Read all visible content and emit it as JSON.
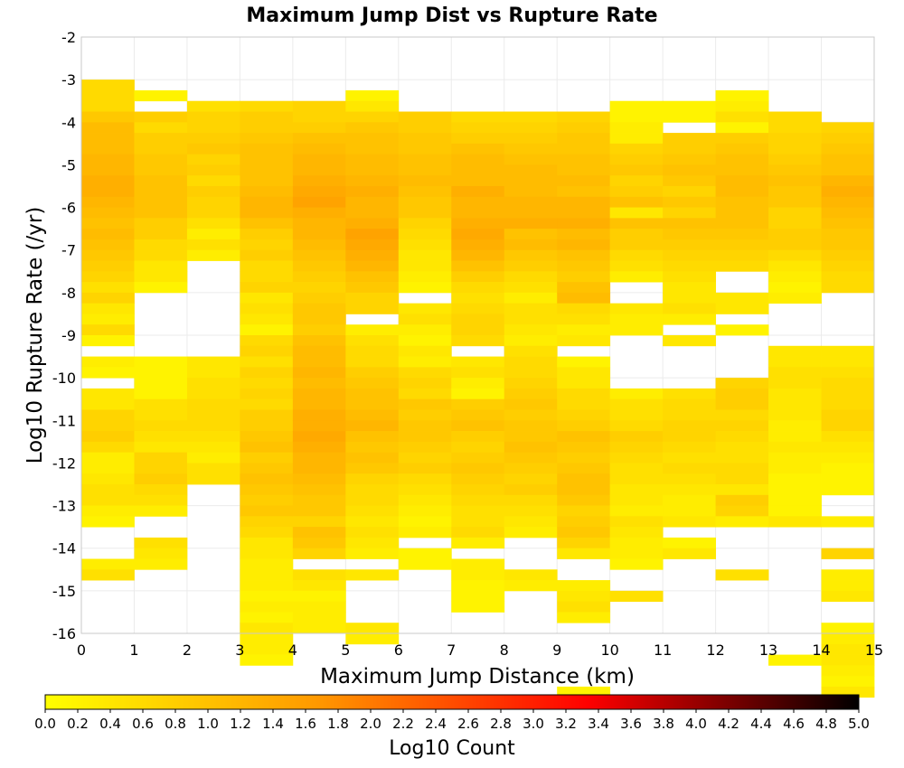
{
  "chart_data": {
    "type": "heatmap",
    "title": "Maximum Jump Dist vs Rupture Rate",
    "xlabel": "Maximum Jump Distance (km)",
    "ylabel": "Log10 Rupture Rate (/yr)",
    "colorbar_label": "Log10 Count",
    "xlim": [
      0,
      15
    ],
    "ylim": [
      -16,
      -2
    ],
    "x_ticks": [
      "0",
      "1",
      "2",
      "3",
      "4",
      "5",
      "6",
      "7",
      "8",
      "9",
      "10",
      "11",
      "12",
      "13",
      "14",
      "15"
    ],
    "y_ticks": [
      "-16",
      "-15",
      "-14",
      "-13",
      "-12",
      "-11",
      "-10",
      "-9",
      "-8",
      "-7",
      "-6",
      "-5",
      "-4",
      "-3",
      "-2"
    ],
    "colorbar_ticks": [
      "0.0",
      "0.2",
      "0.4",
      "0.6",
      "0.8",
      "1.0",
      "1.2",
      "1.4",
      "1.6",
      "1.8",
      "2.0",
      "2.2",
      "2.4",
      "2.6",
      "2.8",
      "3.0",
      "3.2",
      "3.4",
      "3.6",
      "3.8",
      "4.0",
      "4.2",
      "4.4",
      "4.6",
      "4.8",
      "5.0"
    ],
    "colorbar_range": [
      0,
      5
    ],
    "colormap": [
      "#ffff00",
      "#ff9900",
      "#ff0000",
      "#000000"
    ],
    "grid": true,
    "cell_height": 0.25,
    "x_bin_starts": [
      0,
      1,
      2,
      3,
      4,
      5,
      6,
      7,
      8,
      9,
      10,
      11,
      12,
      13,
      14
    ],
    "columns": [
      {
        "y_top": -3.0,
        "values": [
          0.6,
          0.6,
          0.6,
          0.9,
          1.1,
          1.1,
          1.1,
          1.2,
          1.2,
          1.3,
          1.3,
          1.2,
          1.1,
          1.0,
          1.1,
          1.0,
          0.9,
          0.8,
          0.7,
          0.5,
          0.7,
          0.4,
          0.3,
          0.6,
          0.2,
          null,
          0.3,
          0.2,
          null,
          0.4,
          0.4,
          0.7,
          0.7,
          0.8,
          0.6,
          0.3,
          0.3,
          0.4,
          0.5,
          0.5,
          0.3,
          0.2,
          null,
          null,
          null,
          0.3,
          0.5,
          null,
          null,
          null,
          null,
          null,
          null,
          null,
          null,
          null,
          null,
          null,
          null,
          null,
          null,
          null,
          null,
          null
        ]
      },
      {
        "y_top": -3.25,
        "values": [
          0.2,
          null,
          0.8,
          0.6,
          0.8,
          0.8,
          0.9,
          0.9,
          1.0,
          1.0,
          1.0,
          1.0,
          0.8,
          0.8,
          0.6,
          0.6,
          0.4,
          0.4,
          0.2,
          null,
          null,
          null,
          null,
          null,
          null,
          0.2,
          0.2,
          0.2,
          0.2,
          0.5,
          0.5,
          0.6,
          0.5,
          0.4,
          0.7,
          0.7,
          0.8,
          0.6,
          0.5,
          0.3,
          null,
          null,
          0.5,
          0.4,
          0.3,
          null,
          null,
          null,
          null,
          null,
          null,
          null,
          null,
          null,
          null,
          null,
          null,
          null,
          null,
          null,
          null,
          null,
          null,
          null
        ]
      },
      {
        "y_top": -3.5,
        "values": [
          0.5,
          0.7,
          0.7,
          0.8,
          0.9,
          0.7,
          0.8,
          0.6,
          0.8,
          0.7,
          0.7,
          0.5,
          0.3,
          0.5,
          0.3,
          null,
          null,
          null,
          null,
          null,
          null,
          null,
          null,
          null,
          0.4,
          0.4,
          0.5,
          0.5,
          0.6,
          0.6,
          0.6,
          0.5,
          0.4,
          0.3,
          0.5,
          0.5,
          null,
          null,
          null,
          null,
          null,
          null,
          null,
          null,
          null,
          null,
          null,
          null,
          null,
          null,
          null,
          null,
          null,
          null,
          null,
          null,
          null,
          null,
          null,
          null,
          null,
          null,
          null,
          null
        ]
      },
      {
        "y_top": -3.5,
        "values": [
          0.6,
          0.8,
          0.8,
          0.9,
          1.0,
          1.0,
          1.0,
          1.0,
          1.1,
          1.2,
          1.2,
          1.0,
          0.8,
          0.7,
          0.8,
          0.6,
          0.6,
          0.7,
          0.4,
          0.5,
          0.4,
          0.2,
          0.6,
          0.7,
          0.5,
          0.7,
          0.6,
          0.7,
          0.6,
          0.8,
          0.8,
          0.9,
          1.0,
          0.8,
          0.9,
          1.0,
          0.9,
          0.8,
          0.9,
          0.7,
          0.6,
          0.4,
          0.4,
          0.3,
          0.3,
          0.3,
          0.2,
          0.3,
          0.2,
          0.4,
          0.3,
          0.3,
          0.2,
          null,
          null,
          null,
          null,
          null,
          null,
          null,
          null,
          null,
          null,
          null
        ]
      },
      {
        "y_top": -3.5,
        "values": [
          0.7,
          0.7,
          0.8,
          1.0,
          1.1,
          1.2,
          1.2,
          1.3,
          1.4,
          1.5,
          1.3,
          1.2,
          1.2,
          1.1,
          1.0,
          0.9,
          0.8,
          0.7,
          0.8,
          0.9,
          0.9,
          0.8,
          1.0,
          1.1,
          1.1,
          1.2,
          1.1,
          1.2,
          1.2,
          1.3,
          1.3,
          1.4,
          1.3,
          1.2,
          1.2,
          1.1,
          1.0,
          0.9,
          0.9,
          0.7,
          1.0,
          0.9,
          0.7,
          null,
          0.5,
          0.4,
          0.2,
          0.3,
          0.3,
          0.3,
          null,
          null,
          null,
          null,
          null,
          null,
          null,
          null,
          null,
          null,
          null,
          null,
          null,
          null
        ]
      },
      {
        "y_top": -3.25,
        "values": [
          0.2,
          0.4,
          0.7,
          0.9,
          1.0,
          1.0,
          1.1,
          1.1,
          1.2,
          1.3,
          1.2,
          1.2,
          1.3,
          1.5,
          1.4,
          1.3,
          1.2,
          1.0,
          0.9,
          0.7,
          0.7,
          null,
          0.3,
          0.5,
          0.6,
          0.6,
          0.8,
          0.9,
          1.0,
          1.0,
          1.1,
          1.2,
          1.0,
          0.9,
          1.0,
          0.9,
          0.7,
          0.6,
          0.6,
          0.5,
          0.4,
          0.5,
          0.4,
          0.3,
          null,
          0.4,
          null,
          null,
          null,
          null,
          0.4,
          0.3,
          null,
          null,
          null,
          null,
          null,
          null,
          null,
          null,
          null,
          null,
          null,
          null
        ]
      },
      {
        "y_top": -3.75,
        "values": [
          0.8,
          0.8,
          0.9,
          0.9,
          1.0,
          1.0,
          1.1,
          1.0,
          0.9,
          0.9,
          0.7,
          0.6,
          0.5,
          0.4,
          0.4,
          0.3,
          0.2,
          null,
          0.4,
          0.5,
          0.3,
          0.2,
          0.4,
          0.3,
          0.6,
          0.7,
          0.6,
          0.9,
          0.8,
          0.9,
          0.9,
          0.8,
          0.7,
          0.8,
          0.6,
          0.5,
          0.4,
          0.3,
          0.2,
          0.3,
          null,
          0.2,
          0.2,
          null,
          null,
          null,
          null,
          null,
          null,
          null,
          null,
          null,
          null,
          null,
          null,
          null,
          null,
          null,
          null,
          null,
          null,
          null,
          null,
          null
        ]
      },
      {
        "y_top": -3.75,
        "values": [
          0.6,
          0.7,
          0.8,
          1.0,
          1.1,
          1.1,
          1.1,
          1.3,
          1.2,
          1.2,
          1.3,
          1.4,
          1.3,
          1.2,
          1.0,
          0.8,
          0.6,
          0.5,
          0.6,
          0.7,
          0.7,
          0.6,
          null,
          0.4,
          0.5,
          0.3,
          0.2,
          0.8,
          0.9,
          1.0,
          0.8,
          0.7,
          0.8,
          0.9,
          0.8,
          0.7,
          0.6,
          0.5,
          0.5,
          0.6,
          0.3,
          null,
          0.3,
          0.3,
          0.2,
          0.2,
          0.2,
          null,
          null,
          null,
          null,
          null,
          null,
          null,
          null,
          null,
          null,
          null,
          null,
          null,
          null,
          null,
          null,
          null
        ]
      },
      {
        "y_top": -3.75,
        "values": [
          0.6,
          0.7,
          0.8,
          0.9,
          1.0,
          1.1,
          1.1,
          1.1,
          1.2,
          1.2,
          1.3,
          1.0,
          1.1,
          0.9,
          0.8,
          0.6,
          0.5,
          0.3,
          0.5,
          0.5,
          0.4,
          0.3,
          0.5,
          0.6,
          0.6,
          0.7,
          0.8,
          0.9,
          0.8,
          0.9,
          0.9,
          1.0,
          0.9,
          0.8,
          0.7,
          0.8,
          0.6,
          0.5,
          0.4,
          0.3,
          null,
          null,
          null,
          0.4,
          0.3,
          null,
          null,
          null,
          null,
          null,
          null,
          null,
          null,
          null,
          null,
          null,
          null,
          null,
          null,
          null,
          null,
          null,
          null,
          null
        ]
      },
      {
        "y_top": -3.75,
        "values": [
          0.7,
          0.8,
          0.9,
          0.9,
          1.0,
          1.0,
          1.1,
          1.0,
          1.2,
          1.2,
          1.3,
          1.1,
          1.2,
          1.0,
          0.9,
          0.8,
          1.0,
          1.1,
          0.6,
          0.5,
          0.3,
          0.4,
          null,
          0.2,
          0.4,
          0.4,
          0.6,
          0.6,
          0.7,
          0.8,
          1.0,
          0.9,
          0.8,
          0.9,
          1.0,
          1.0,
          0.9,
          0.7,
          0.8,
          0.9,
          0.7,
          0.4,
          null,
          null,
          0.3,
          0.4,
          0.5,
          0.3,
          null,
          null,
          null,
          null,
          null,
          null,
          0.2,
          null,
          null,
          null,
          null,
          null,
          null,
          null,
          null,
          null
        ]
      },
      {
        "y_top": -3.5,
        "values": [
          0.2,
          0.2,
          0.3,
          0.3,
          0.7,
          0.8,
          0.9,
          0.7,
          0.8,
          1.0,
          0.4,
          1.0,
          0.8,
          0.8,
          0.6,
          0.5,
          0.3,
          null,
          null,
          0.4,
          0.3,
          0.3,
          null,
          null,
          null,
          null,
          null,
          0.3,
          0.5,
          0.5,
          0.6,
          0.8,
          0.7,
          0.6,
          0.5,
          0.5,
          0.4,
          0.4,
          0.3,
          0.5,
          0.4,
          0.3,
          0.3,
          0.2,
          null,
          null,
          0.5,
          null,
          null,
          null,
          null,
          null,
          null,
          null,
          null,
          null,
          null,
          null,
          null,
          null,
          null,
          null,
          null,
          null
        ]
      },
      {
        "y_top": -3.5,
        "values": [
          0.2,
          0.2,
          null,
          0.8,
          0.8,
          0.9,
          1.0,
          0.9,
          0.7,
          0.9,
          0.7,
          1.0,
          0.9,
          0.8,
          0.7,
          0.6,
          0.5,
          0.4,
          0.4,
          0.5,
          0.3,
          null,
          0.4,
          null,
          null,
          null,
          null,
          0.5,
          0.6,
          0.6,
          0.7,
          0.7,
          0.6,
          0.5,
          0.6,
          0.5,
          0.4,
          0.3,
          0.3,
          0.4,
          null,
          0.2,
          0.4,
          null,
          null,
          null,
          null,
          null,
          null,
          null,
          null,
          null,
          null,
          null,
          null,
          null,
          null,
          null,
          null,
          null,
          null,
          null,
          null,
          null
        ]
      },
      {
        "y_top": -3.25,
        "values": [
          0.2,
          0.3,
          0.5,
          0.2,
          0.8,
          0.9,
          1.0,
          1.0,
          1.1,
          1.1,
          1.0,
          1.0,
          1.0,
          0.9,
          0.8,
          0.7,
          0.6,
          null,
          null,
          0.4,
          0.4,
          null,
          0.2,
          null,
          null,
          null,
          null,
          0.7,
          0.8,
          0.8,
          0.6,
          0.7,
          0.6,
          0.5,
          0.5,
          0.6,
          0.6,
          0.4,
          0.8,
          0.7,
          0.3,
          null,
          null,
          null,
          null,
          0.5,
          null,
          null,
          null,
          null,
          null,
          null,
          null,
          null,
          null,
          null,
          null,
          null,
          null,
          null,
          null,
          null,
          null,
          null
        ]
      },
      {
        "y_top": -3.75,
        "values": [
          0.6,
          0.6,
          0.7,
          0.7,
          0.8,
          0.9,
          1.0,
          0.9,
          0.9,
          0.7,
          0.7,
          0.8,
          0.8,
          0.6,
          0.4,
          0.3,
          0.2,
          0.3,
          null,
          null,
          null,
          null,
          0.4,
          0.4,
          0.5,
          0.5,
          0.4,
          0.4,
          0.4,
          0.3,
          0.3,
          0.4,
          0.3,
          0.3,
          0.2,
          0.2,
          0.2,
          0.2,
          0.4,
          null,
          null,
          null,
          null,
          null,
          null,
          null,
          null,
          null,
          null,
          null,
          null,
          0.2,
          null,
          null,
          null,
          null,
          null,
          null,
          null,
          null,
          null,
          null,
          null,
          null
        ]
      },
      {
        "y_top": -4.0,
        "values": [
          0.7,
          0.8,
          0.9,
          1.0,
          1.0,
          1.2,
          1.3,
          1.2,
          1.1,
          1.0,
          0.9,
          0.9,
          0.8,
          0.7,
          0.6,
          0.6,
          null,
          null,
          null,
          null,
          null,
          0.4,
          0.4,
          0.5,
          0.6,
          0.6,
          0.6,
          0.7,
          0.7,
          0.5,
          0.4,
          0.3,
          0.2,
          0.2,
          0.2,
          null,
          null,
          0.3,
          null,
          null,
          0.7,
          null,
          0.3,
          0.3,
          0.4,
          null,
          null,
          0.2,
          0.3,
          0.4,
          0.4,
          0.3,
          0.2,
          0.4,
          null,
          null,
          null,
          null,
          null,
          null,
          null,
          null,
          null,
          null
        ]
      }
    ]
  }
}
